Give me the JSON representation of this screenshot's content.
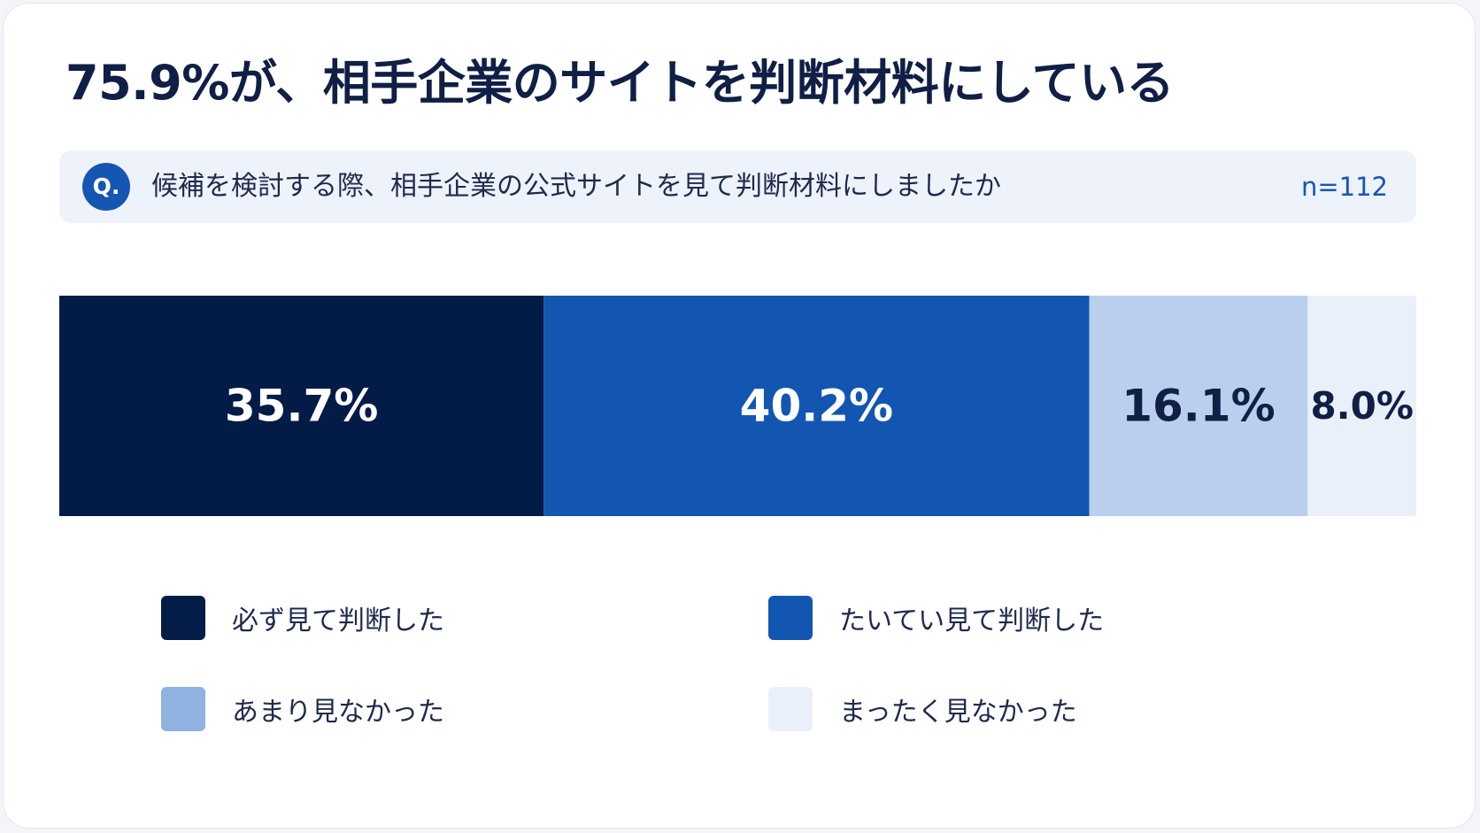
{
  "title": "75.9%が、相手企業のサイトを判断材料にしている",
  "question": {
    "badge": "Q.",
    "text": "候補を検討する際、相手企業の公式サイトを見て判断材料にしましたか",
    "n": "n=112"
  },
  "colors": {
    "series_1": "#031b47",
    "series_2": "#1356b1",
    "series_3": "#b9cfed",
    "series_4": "#eaf0fa"
  },
  "chart_data": {
    "type": "bar",
    "orientation": "horizontal-stacked-100",
    "categories": [
      ""
    ],
    "series": [
      {
        "name": "必ず見て判断した",
        "values": [
          35.7
        ],
        "label": "35.7%"
      },
      {
        "name": "たいてい見て判断した",
        "values": [
          40.2
        ],
        "label": "40.2%"
      },
      {
        "name": "あまり見なかった",
        "values": [
          16.1
        ],
        "label": "16.1%"
      },
      {
        "name": "まったく見なかった",
        "values": [
          8.0
        ],
        "label": "8.0%"
      }
    ],
    "xlim": [
      0,
      100
    ],
    "grid": false,
    "legend": "bottom"
  },
  "legend": [
    {
      "label": "必ず見て判断した",
      "color": "#041c48"
    },
    {
      "label": "たいてい見て判断した",
      "color": "#1356b1"
    },
    {
      "label": "あまり見なかった",
      "color": "#8fb2e0"
    },
    {
      "label": "まったく見なかった",
      "color": "#eaf0fa"
    }
  ]
}
